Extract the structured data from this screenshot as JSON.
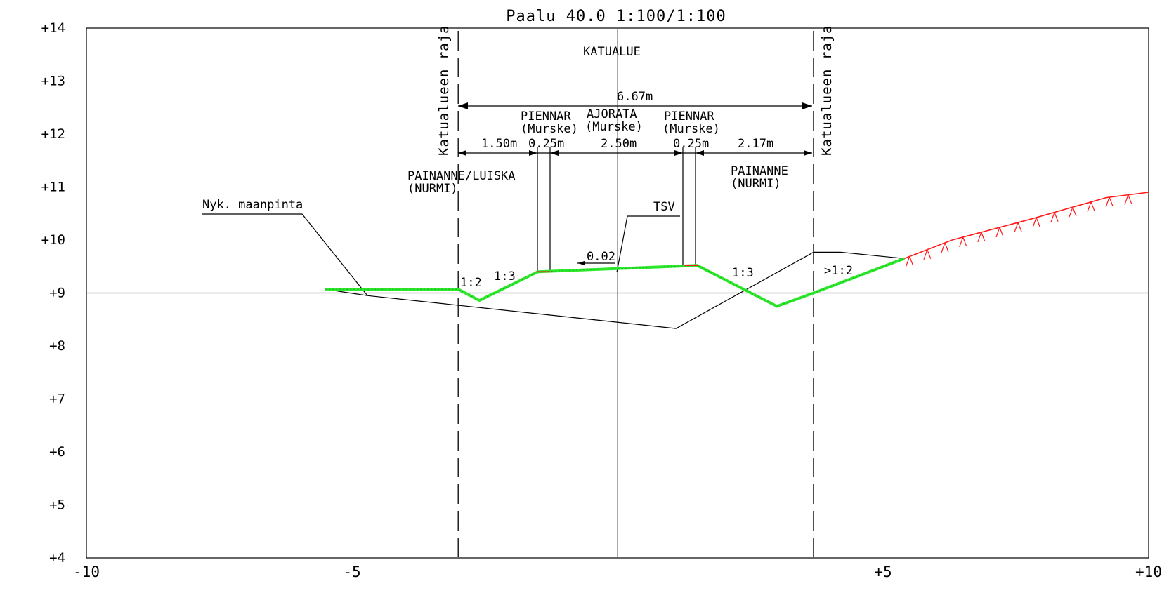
{
  "title": "Paalu 40.0   1:100/1:100",
  "axes": {
    "x": {
      "min": -10,
      "max": 10,
      "tick_labels": [
        {
          "value": -10,
          "text": "-10"
        },
        {
          "value": -5,
          "text": "-5"
        },
        {
          "value": 5,
          "text": "+5"
        },
        {
          "value": 10,
          "text": "+10"
        }
      ]
    },
    "y": {
      "min": 4,
      "max": 14,
      "tick_labels": [
        {
          "value": 14,
          "text": "+14"
        },
        {
          "value": 13,
          "text": "+13"
        },
        {
          "value": 12,
          "text": "+12"
        },
        {
          "value": 11,
          "text": "+11"
        },
        {
          "value": 10,
          "text": "+10"
        },
        {
          "value": 9,
          "text": "+9"
        },
        {
          "value": 8,
          "text": "+8"
        },
        {
          "value": 7,
          "text": "+7"
        },
        {
          "value": 6,
          "text": "+6"
        },
        {
          "value": 5,
          "text": "+5"
        },
        {
          "value": 4,
          "text": "+4"
        }
      ]
    },
    "reference_line_y": 9,
    "reference_line_x": 0
  },
  "boundaries": {
    "x": [
      -3.0,
      3.69
    ],
    "label": "Katualueen raja"
  },
  "labels": {
    "area": "KATUALUE",
    "existing_ground": "Nyk. maanpinta",
    "left_ditch": [
      "PAINANNE/LUISKA",
      "(NURMI)"
    ],
    "right_ditch": [
      "PAINANNE",
      "(NURMI)"
    ],
    "left_shoulder": [
      "PIENNAR",
      "(Murske)"
    ],
    "carriageway": [
      "AJORATA",
      "(Murske)"
    ],
    "right_shoulder": [
      "PIENNAR",
      "(Murske)"
    ],
    "tsv": "TSV",
    "crossfall": "0.02"
  },
  "dimensions": {
    "total": "6.67m",
    "segments": [
      "1.50m",
      "0.25m",
      "2.50m",
      "0.25m",
      "2.17m"
    ]
  },
  "slopes": [
    "1:2",
    "1:3",
    "1:3",
    ">1:2"
  ],
  "profiles": {
    "existing_ground": [
      [
        -5.5,
        9.07
      ],
      [
        -4.7,
        8.95
      ],
      [
        1.1,
        8.33
      ],
      [
        3.69,
        9.77
      ],
      [
        4.2,
        9.77
      ],
      [
        5.4,
        9.65
      ]
    ],
    "design_green": [
      [
        -5.5,
        9.07
      ],
      [
        -3.0,
        9.07
      ],
      [
        -2.6,
        8.86
      ],
      [
        -1.5,
        9.4
      ],
      [
        1.5,
        9.52
      ],
      [
        3.0,
        8.75
      ],
      [
        3.69,
        9.0
      ],
      [
        5.4,
        9.65
      ]
    ],
    "road_top": [
      [
        -1.5,
        9.4
      ],
      [
        1.5,
        9.52
      ]
    ],
    "cut_red": [
      [
        5.4,
        9.65
      ],
      [
        6.3,
        10.0
      ],
      [
        7.8,
        10.4
      ],
      [
        9.2,
        10.8
      ],
      [
        10,
        10.9
      ]
    ]
  },
  "colors": {
    "line": "#000000",
    "grid": "#6e6e6e",
    "grass": "#2ee82e",
    "cut": "#ff1a1a"
  }
}
